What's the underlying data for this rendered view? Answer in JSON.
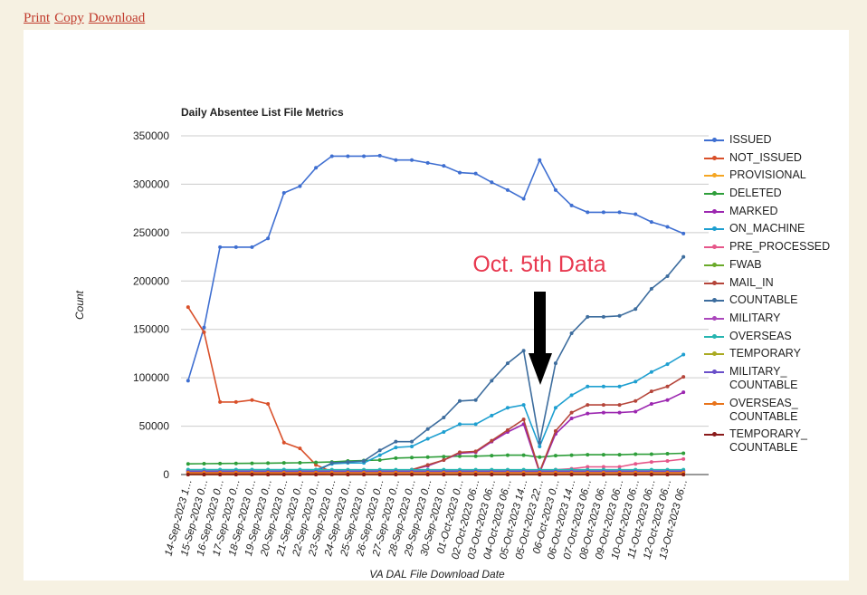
{
  "links": [
    "Print",
    "Copy",
    "Download"
  ],
  "chart_data": {
    "type": "line",
    "title": "Daily Absentee List File Metrics",
    "y_label": "Count",
    "x_label": "VA DAL File Download Date",
    "annotation": "Oct. 5th Data",
    "grid": true,
    "legend": "right",
    "ylim": [
      0,
      350000
    ],
    "yticks": [
      0,
      50000,
      100000,
      150000,
      200000,
      250000,
      300000,
      350000
    ],
    "categories": [
      "14-Sep-2023 1…",
      "15-Sep-2023 0…",
      "16-Sep-2023 0…",
      "17-Sep-2023 0…",
      "18-Sep-2023 0…",
      "19-Sep-2023 0…",
      "20-Sep-2023 0…",
      "21-Sep-2023 0…",
      "22-Sep-2023 0…",
      "23-Sep-2023 0…",
      "24-Sep-2023 0…",
      "25-Sep-2023 0…",
      "26-Sep-2023 0…",
      "27-Sep-2023 0…",
      "28-Sep-2023 0…",
      "29-Sep-2023 0…",
      "30-Sep-2023 0…",
      "01-Oct-2023 0…",
      "02-Oct-2023 06…",
      "03-Oct-2023 06…",
      "04-Oct-2023 06…",
      "05-Oct-2023 14…",
      "05-Oct-2023 22…",
      "06-Oct-2023 0…",
      "06-Oct-2023 14…",
      "07-Oct-2023 06…",
      "08-Oct-2023 06…",
      "09-Oct-2023 06…",
      "10-Oct-2023 06…",
      "11-Oct-2023 06…",
      "12-Oct-2023 06…",
      "13-Oct-2023 06…"
    ],
    "series": [
      {
        "name": "ISSUED",
        "color": "#3f6fd1",
        "values": [
          97000,
          152000,
          235000,
          235000,
          235000,
          244000,
          291000,
          298000,
          317000,
          329000,
          329000,
          329000,
          329500,
          325000,
          325000,
          322000,
          319000,
          312000,
          311000,
          302000,
          294000,
          285000,
          325000,
          294000,
          278000,
          271000,
          271000,
          271000,
          269000,
          261000,
          256000,
          249000
        ]
      },
      {
        "name": "NOT_ISSUED",
        "color": "#d9502a",
        "values": [
          173000,
          147000,
          75000,
          75000,
          77000,
          73000,
          33000,
          27000,
          10000,
          3000,
          2000,
          2000,
          2000,
          2000,
          2000,
          2000,
          2000,
          2000,
          2000,
          2000,
          2000,
          2000,
          2000,
          2000,
          2000,
          2000,
          2000,
          2000,
          2000,
          2000,
          2000,
          2000
        ]
      },
      {
        "name": "PROVISIONAL",
        "color": "#f5a623",
        "values": [
          0,
          0,
          0,
          0,
          0,
          0,
          0,
          0,
          0,
          0,
          0,
          0,
          0,
          0,
          0,
          0,
          0,
          0,
          0,
          0,
          0,
          0,
          0,
          0,
          0,
          0,
          0,
          0,
          0,
          0,
          0,
          0
        ]
      },
      {
        "name": "DELETED",
        "color": "#2e9e3a",
        "values": [
          11000,
          11200,
          11400,
          11500,
          11600,
          11800,
          12000,
          12200,
          12500,
          13000,
          14000,
          14500,
          15000,
          17000,
          17500,
          18000,
          18500,
          19000,
          19000,
          19500,
          20000,
          20000,
          18000,
          19500,
          20000,
          20500,
          20500,
          20500,
          21000,
          21000,
          21500,
          22000
        ]
      },
      {
        "name": "MARKED",
        "color": "#9c27b0",
        "values": [
          1000,
          1000,
          1000,
          1000,
          1000,
          1000,
          1000,
          1000,
          1000,
          2000,
          2000,
          2000,
          3000,
          4000,
          5000,
          9000,
          15000,
          22000,
          23000,
          34000,
          44000,
          52000,
          2000,
          42000,
          58000,
          63000,
          64000,
          64000,
          65000,
          73000,
          77000,
          85000
        ]
      },
      {
        "name": "ON_MACHINE",
        "color": "#1e9fd0",
        "values": [
          5000,
          5000,
          5000,
          5000,
          5000,
          5000,
          5000,
          5000,
          5000,
          11000,
          12000,
          12000,
          20000,
          28000,
          29000,
          37000,
          44000,
          52000,
          52000,
          61000,
          69000,
          72000,
          29000,
          69000,
          82000,
          91000,
          91000,
          91000,
          96000,
          106000,
          114000,
          124000
        ]
      },
      {
        "name": "PRE_PROCESSED",
        "color": "#e6578a",
        "values": [
          4000,
          4000,
          4000,
          4000,
          4000,
          4000,
          4000,
          4000,
          4000,
          4000,
          4000,
          4000,
          4000,
          4000,
          4000,
          4000,
          4000,
          4000,
          4000,
          4000,
          4000,
          4000,
          3000,
          5000,
          6000,
          8000,
          8000,
          8000,
          11000,
          13000,
          14000,
          16000
        ]
      },
      {
        "name": "FWAB",
        "color": "#6aaa2a",
        "values": [
          0,
          0,
          0,
          0,
          0,
          0,
          0,
          0,
          0,
          0,
          0,
          0,
          0,
          0,
          0,
          0,
          0,
          0,
          0,
          0,
          0,
          0,
          0,
          0,
          0,
          0,
          0,
          0,
          0,
          0,
          0,
          0
        ]
      },
      {
        "name": "MAIL_IN",
        "color": "#b5453a",
        "values": [
          1000,
          1000,
          1000,
          1000,
          1000,
          1000,
          1000,
          1000,
          1000,
          2000,
          2000,
          2000,
          3000,
          4000,
          5000,
          10000,
          15000,
          23000,
          24000,
          35000,
          46000,
          57000,
          3000,
          45000,
          64000,
          72000,
          72000,
          72000,
          76000,
          86000,
          91000,
          101000
        ]
      },
      {
        "name": "COUNTABLE",
        "color": "#3d6d9e",
        "values": [
          3000,
          3000,
          3000,
          3000,
          3000,
          3000,
          3000,
          3000,
          3000,
          12000,
          13000,
          14000,
          25000,
          34000,
          34000,
          47000,
          59000,
          76000,
          77000,
          97000,
          115000,
          128000,
          33000,
          115000,
          146000,
          163000,
          163000,
          164000,
          171000,
          192000,
          205000,
          225000
        ]
      },
      {
        "name": "MILITARY",
        "color": "#ab47bc",
        "values": [
          4000,
          4000,
          4000,
          4000,
          4000,
          4000,
          4000,
          4000,
          4000,
          4000,
          4000,
          4000,
          4000,
          4000,
          4000,
          4000,
          4000,
          4000,
          4000,
          4000,
          4000,
          4000,
          4000,
          4000,
          4000,
          4000,
          4000,
          4000,
          4000,
          4000,
          4000,
          4000
        ]
      },
      {
        "name": "OVERSEAS",
        "color": "#26b5b0",
        "values": [
          5000,
          5000,
          5000,
          5000,
          5000,
          5000,
          5000,
          5000,
          5000,
          5000,
          5000,
          5000,
          5000,
          5000,
          5000,
          5000,
          5000,
          5000,
          5000,
          5000,
          5000,
          5000,
          5000,
          5000,
          5000,
          5000,
          5000,
          5000,
          5000,
          5000,
          5000,
          5000
        ]
      },
      {
        "name": "TEMPORARY",
        "color": "#aaaa22",
        "values": [
          0,
          0,
          0,
          0,
          0,
          0,
          0,
          0,
          0,
          0,
          0,
          0,
          0,
          0,
          0,
          0,
          0,
          0,
          0,
          0,
          0,
          0,
          0,
          0,
          0,
          0,
          0,
          0,
          0,
          0,
          0,
          0
        ]
      },
      {
        "name": "MILITARY_ COUNTABLE",
        "color": "#6a4fc9",
        "values": [
          3000,
          3000,
          3000,
          3000,
          3000,
          3000,
          3000,
          3000,
          3000,
          3000,
          3000,
          3000,
          3000,
          3000,
          3000,
          3000,
          3000,
          3000,
          3000,
          3000,
          3000,
          3000,
          3000,
          3000,
          3000,
          3000,
          3000,
          3000,
          3000,
          3000,
          3000,
          3000
        ]
      },
      {
        "name": "OVERSEAS_ COUNTABLE",
        "color": "#e8731a",
        "values": [
          2000,
          2000,
          2000,
          2000,
          2000,
          2000,
          2000,
          2000,
          2000,
          2000,
          2000,
          2000,
          2000,
          2000,
          2000,
          2000,
          2000,
          2000,
          2000,
          2000,
          2000,
          2000,
          2000,
          2000,
          2000,
          2000,
          2000,
          2000,
          2000,
          2000,
          2000,
          2000
        ]
      },
      {
        "name": "TEMPORARY_ COUNTABLE",
        "color": "#8a1a1a",
        "values": [
          0,
          0,
          0,
          0,
          0,
          0,
          0,
          0,
          0,
          0,
          0,
          0,
          0,
          0,
          0,
          0,
          0,
          0,
          0,
          0,
          0,
          0,
          0,
          0,
          0,
          0,
          0,
          0,
          0,
          0,
          0,
          0
        ]
      }
    ]
  }
}
